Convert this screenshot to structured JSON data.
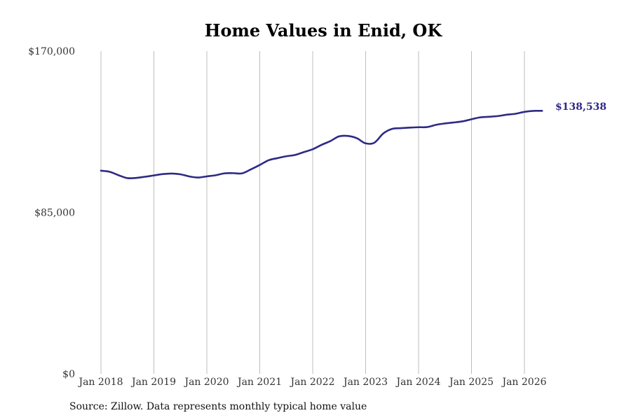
{
  "chart_data": {
    "type": "line",
    "title": "Home Values in Enid, OK",
    "xlabel": "",
    "ylabel": "",
    "ylim": [
      0,
      170000
    ],
    "y_ticks": [
      0,
      85000,
      170000
    ],
    "y_tick_labels": [
      "$0",
      "$85,000",
      "$170,000"
    ],
    "x_ticks": [
      "2018-01",
      "2019-01",
      "2020-01",
      "2021-01",
      "2022-01",
      "2023-01",
      "2024-01",
      "2025-01",
      "2026-01"
    ],
    "x_tick_labels": [
      "Jan 2018",
      "Jan 2019",
      "Jan 2020",
      "Jan 2021",
      "Jan 2022",
      "Jan 2023",
      "Jan 2024",
      "Jan 2025",
      "Jan 2026"
    ],
    "grid": {
      "vertical": true,
      "horizontal": false
    },
    "end_label": "$138,538",
    "line_color": "#2e2a85",
    "grid_color": "#bdbdbd",
    "series": [
      {
        "x": [
          "2018-01",
          "2018-03",
          "2018-05",
          "2018-07",
          "2018-09",
          "2018-11",
          "2019-01",
          "2019-03",
          "2019-05",
          "2019-07",
          "2019-09",
          "2019-11",
          "2020-01",
          "2020-03",
          "2020-05",
          "2020-07",
          "2020-09",
          "2020-11",
          "2021-01",
          "2021-03",
          "2021-05",
          "2021-07",
          "2021-09",
          "2021-11",
          "2022-01",
          "2022-03",
          "2022-05",
          "2022-07",
          "2022-09",
          "2022-11",
          "2023-01",
          "2023-03",
          "2023-05",
          "2023-07",
          "2023-09",
          "2023-11",
          "2024-01",
          "2024-03",
          "2024-05",
          "2024-07",
          "2024-09",
          "2024-11",
          "2025-01",
          "2025-03",
          "2025-05",
          "2025-07",
          "2025-09",
          "2025-11",
          "2026-01",
          "2026-03",
          "2026-05"
        ],
        "values": [
          107000,
          106400,
          104600,
          103100,
          103200,
          103800,
          104500,
          105200,
          105500,
          105100,
          104000,
          103400,
          104000,
          104600,
          105600,
          105700,
          105600,
          107700,
          110000,
          112500,
          113600,
          114600,
          115300,
          116800,
          118300,
          120600,
          122600,
          125100,
          125300,
          124100,
          121400,
          121800,
          126600,
          129000,
          129400,
          129700,
          129900,
          130000,
          131200,
          131900,
          132400,
          133000,
          134100,
          135100,
          135400,
          135800,
          136500,
          137000,
          138000,
          138500,
          138538
        ]
      }
    ]
  },
  "source_note": "Source: Zillow. Data represents monthly typical home value"
}
